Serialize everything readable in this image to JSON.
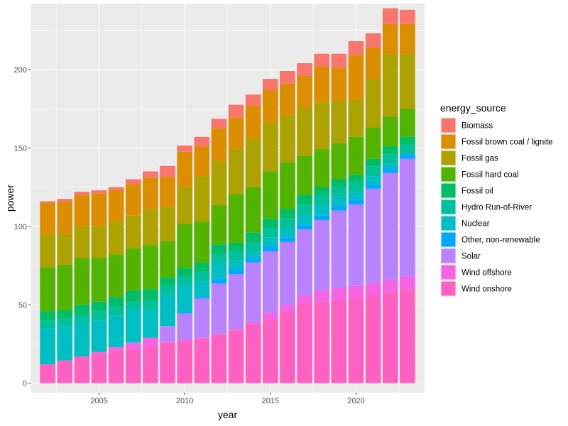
{
  "chart_data": {
    "type": "bar",
    "stacked": true,
    "xlabel": "year",
    "ylabel": "power",
    "xlim": [
      2001,
      2024
    ],
    "ylim": [
      -6,
      242
    ],
    "x_ticks": [
      2005,
      2010,
      2015,
      2020
    ],
    "y_ticks": [
      0,
      50,
      100,
      150,
      200
    ],
    "x_tick_labels": [
      "2005",
      "2010",
      "2015",
      "2020"
    ],
    "y_tick_labels": [
      "0",
      "50",
      "100",
      "150",
      "200"
    ],
    "legend_title": "energy_source",
    "legend_position": "right",
    "categories": [
      2002,
      2003,
      2004,
      2005,
      2006,
      2007,
      2008,
      2009,
      2010,
      2011,
      2012,
      2013,
      2014,
      2015,
      2016,
      2017,
      2018,
      2019,
      2020,
      2021,
      2022,
      2023
    ],
    "series": [
      {
        "name": "Wind onshore",
        "color": "#FF61C3",
        "values": [
          12,
          14.5,
          17,
          19,
          21,
          22,
          23,
          26,
          27,
          28.5,
          31,
          33.5,
          38,
          41,
          46,
          51,
          52,
          53,
          54,
          56,
          58,
          60
        ]
      },
      {
        "name": "Wind offshore",
        "color": "#F564E3",
        "values": [
          0,
          0,
          0,
          1,
          2,
          3,
          6,
          0.5,
          0.5,
          0.5,
          0.5,
          1,
          1,
          4,
          4,
          5,
          7,
          8,
          8,
          8,
          8,
          8
        ]
      },
      {
        "name": "Solar",
        "color": "#B983FF",
        "values": [
          0,
          0,
          0,
          0,
          0,
          1,
          0,
          10,
          17,
          25,
          32,
          35,
          38,
          39,
          40,
          42,
          45,
          49,
          52,
          60,
          68,
          75
        ]
      },
      {
        "name": "Other, non-renewable",
        "color": "#00A9FF",
        "values": [
          0,
          0,
          0,
          0,
          0,
          0,
          0,
          0,
          1,
          1,
          3,
          3,
          3,
          3,
          3,
          3,
          3,
          3,
          3,
          3,
          3,
          3
        ]
      },
      {
        "name": "Nuclear",
        "color": "#00BFC4",
        "values": [
          23,
          22,
          22,
          20,
          20,
          21,
          18,
          20,
          17,
          10,
          10,
          6,
          4,
          6,
          6,
          7,
          7,
          6,
          5,
          5,
          3,
          0
        ]
      },
      {
        "name": "Hydro Run-of-River",
        "color": "#00C19A",
        "values": [
          5,
          5,
          5,
          6,
          6,
          5,
          6,
          6,
          6,
          6,
          6,
          6,
          6,
          6,
          6,
          6,
          6,
          6,
          6,
          6,
          6,
          6
        ]
      },
      {
        "name": "Fossil oil",
        "color": "#00BE67",
        "values": [
          6,
          5,
          6,
          6,
          6,
          7,
          7,
          5,
          5,
          6,
          6,
          5,
          6,
          6,
          6,
          6,
          5,
          5,
          5,
          5,
          5,
          5
        ]
      },
      {
        "name": "Fossil hard coal",
        "color": "#53B400",
        "values": [
          28,
          29,
          30,
          28,
          27,
          27,
          28,
          23,
          28,
          26,
          25,
          31,
          29,
          30,
          30,
          25,
          24,
          23,
          24,
          20,
          19,
          18
        ]
      },
      {
        "name": "Fossil gas",
        "color": "#AEA200",
        "values": [
          21,
          20,
          20,
          20,
          21,
          21,
          23,
          22,
          24,
          29,
          28,
          29,
          31,
          31,
          30,
          30,
          30,
          27,
          24,
          31,
          40,
          35
        ]
      },
      {
        "name": "Fossil brown coal / lignite",
        "color": "#DB8E00",
        "values": [
          20,
          20,
          20,
          21,
          20,
          20,
          20,
          19,
          22,
          19,
          21,
          20,
          21,
          21,
          20,
          21,
          23,
          21,
          28,
          20,
          19,
          19
        ]
      },
      {
        "name": "Biomass",
        "color": "#F8766D",
        "values": [
          1,
          2,
          2,
          2,
          2,
          3,
          4,
          7,
          4,
          6,
          6,
          8,
          7,
          7,
          8,
          8,
          8,
          9,
          9,
          9,
          10,
          9
        ]
      }
    ]
  }
}
